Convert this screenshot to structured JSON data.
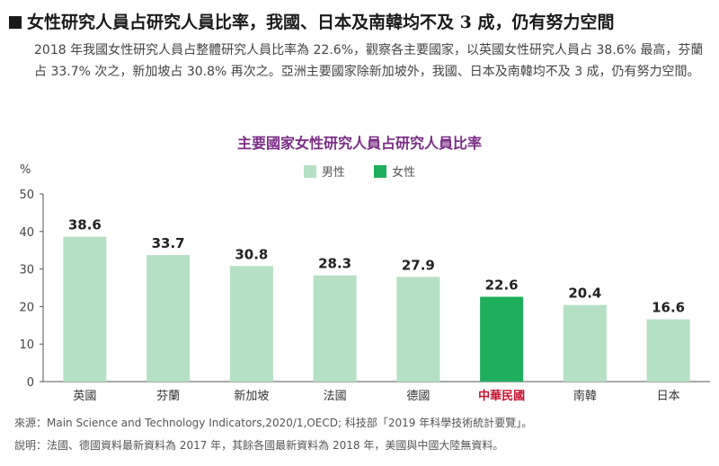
{
  "heading": "女性研究人員占研究人員比率，我國、日本及南韓均不及 3 成，仍有努力空間",
  "paragraph": "2018 年我國女性研究人員占整體研究人員比率為 22.6%，觀察各主要國家，以英國女性研究人員占 38.6% 最高，芬蘭占 33.7% 次之，新加坡占 30.8% 再次之。亞洲主要國家除新加坡外，我國、日本及南韓均不及 3 成，仍有努力空間。",
  "colors": {
    "light_bar": "#b5e0c4",
    "highlight_bar": "#1fae5c",
    "title": "#7b2d86",
    "highlight_label": "#c8102e"
  },
  "chart_data": {
    "type": "bar",
    "title": "主要國家女性研究人員占研究人員比率",
    "ylabel": "%",
    "ylim": [
      0,
      50
    ],
    "yticks": [
      0,
      10,
      20,
      30,
      40,
      50
    ],
    "legend": [
      "男性",
      "女性"
    ],
    "categories": [
      "英國",
      "芬蘭",
      "新加坡",
      "法國",
      "德國",
      "中華民國",
      "南韓",
      "日本"
    ],
    "values": [
      38.6,
      33.7,
      30.8,
      28.3,
      27.9,
      22.6,
      20.4,
      16.6
    ],
    "value_labels": [
      "38.6",
      "33.7",
      "30.8",
      "28.3",
      "27.9",
      "22.6",
      "20.4",
      "16.6"
    ],
    "highlight_index": 5
  },
  "source": "來源：Main Science and Technology Indicators,2020/1,OECD; 科技部「2019 年科學技術統計要覽」。",
  "note": "說明：法國、德國資料最新資料為 2017 年，其餘各國最新資料為 2018 年，美國與中國大陸無資料。"
}
